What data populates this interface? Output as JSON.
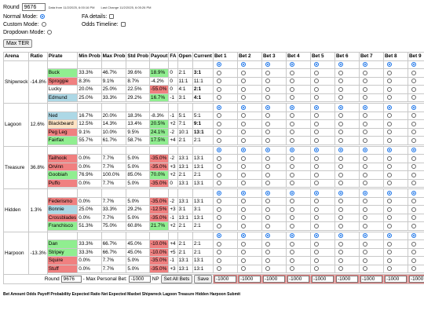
{
  "header": {
    "round_label": "Round",
    "round_value": "9676",
    "data_from": "Data from 11/2/2025, 6:00:16 PM",
    "last_change": "Last Change 11/2/2025, 6:05:26 PM",
    "normal_mode": "Normal Mode:",
    "custom_mode": "Custom Mode:",
    "dropdown_mode": "Dropdown Mode:",
    "fa_details": "FA details:",
    "odds_timeline": "Odds Timeline:",
    "max_ter": "Max TER"
  },
  "columns": [
    "Arena",
    "Ratio",
    "Pirate",
    "Min Prob",
    "Max Prob",
    "Std Prob",
    "Payout",
    "FA",
    "Open",
    "Current",
    "Bet 1",
    "Bet 2",
    "Bet 3",
    "Bet 4",
    "Bet 5",
    "Bet 6",
    "Bet 7",
    "Bet 8",
    "Bet 9"
  ],
  "arenas": [
    {
      "name": "Shipwreck",
      "ratio": "-14.8%",
      "pirates": [
        {
          "name": "Buck",
          "color": "g",
          "min": "33.3%",
          "max": "46.7%",
          "std": "39.6%",
          "payout": "18.9%",
          "pay_color": "g",
          "fa": "0",
          "open": "2:1",
          "current": "3:1",
          "cur_bold": true
        },
        {
          "name": "Sproggie",
          "color": "r",
          "min": "8.3%",
          "max": "9.1%",
          "std": "8.7%",
          "payout": "-4.2%",
          "pay_color": "",
          "fa": "0",
          "open": "11:1",
          "current": "11:1",
          "cur_bold": false
        },
        {
          "name": "Lucky",
          "color": "",
          "min": "20.0%",
          "max": "25.0%",
          "std": "22.5%",
          "payout": "-55.0%",
          "pay_color": "r",
          "fa": "0",
          "open": "4:1",
          "current": "2:1",
          "cur_bold": true
        },
        {
          "name": "Edmund",
          "color": "b",
          "min": "25.0%",
          "max": "33.3%",
          "std": "29.2%",
          "payout": "16.7%",
          "pay_color": "g",
          "fa": "-1",
          "open": "3:1",
          "current": "4:1",
          "cur_bold": true
        }
      ]
    },
    {
      "name": "Lagoon",
      "ratio": "12.6%",
      "pirates": [
        {
          "name": "Ned",
          "color": "b",
          "min": "16.7%",
          "max": "20.0%",
          "std": "18.3%",
          "payout": "-8.3%",
          "pay_color": "",
          "fa": "-1",
          "open": "5:1",
          "current": "5:1",
          "cur_bold": false
        },
        {
          "name": "Blackbeard",
          "color": "o",
          "min": "12.5%",
          "max": "14.3%",
          "std": "13.4%",
          "payout": "20.5%",
          "pay_color": "g",
          "fa": "+2",
          "open": "7:1",
          "current": "9:1",
          "cur_bold": true
        },
        {
          "name": "Peg Leg",
          "color": "r",
          "min": "9.1%",
          "max": "10.0%",
          "std": "9.5%",
          "payout": "24.1%",
          "pay_color": "g",
          "fa": "-2",
          "open": "10:1",
          "current": "13:1",
          "cur_bold": true
        },
        {
          "name": "Fairfax",
          "color": "g",
          "min": "55.7%",
          "max": "61.7%",
          "std": "58.7%",
          "payout": "17.5%",
          "pay_color": "g",
          "fa": "+4",
          "open": "2:1",
          "current": "2:1",
          "cur_bold": false
        }
      ]
    },
    {
      "name": "Treasure",
      "ratio": "36.8%",
      "pirates": [
        {
          "name": "Tailhook",
          "color": "r",
          "min": "0.0%",
          "max": "7.7%",
          "std": "5.0%",
          "payout": "-35.0%",
          "pay_color": "r",
          "fa": "-2",
          "open": "13:1",
          "current": "13:1",
          "cur_bold": false
        },
        {
          "name": "Orvinn",
          "color": "r",
          "min": "0.0%",
          "max": "7.7%",
          "std": "5.0%",
          "payout": "-35.0%",
          "pay_color": "r",
          "fa": "+3",
          "open": "13:1",
          "current": "13:1",
          "cur_bold": false
        },
        {
          "name": "Goobiah",
          "color": "g",
          "min": "76.9%",
          "max": "100.0%",
          "std": "85.0%",
          "payout": "70.0%",
          "pay_color": "g",
          "fa": "+2",
          "open": "2:1",
          "current": "2:1",
          "cur_bold": false
        },
        {
          "name": "Puffo",
          "color": "r",
          "min": "0.0%",
          "max": "7.7%",
          "std": "5.0%",
          "payout": "-35.0%",
          "pay_color": "r",
          "fa": "0",
          "open": "13:1",
          "current": "13:1",
          "cur_bold": false
        }
      ]
    },
    {
      "name": "Hidden",
      "ratio": "1.3%",
      "pirates": [
        {
          "name": "Federismo",
          "color": "r",
          "min": "0.0%",
          "max": "7.7%",
          "std": "5.0%",
          "payout": "-35.0%",
          "pay_color": "r",
          "fa": "-2",
          "open": "13:1",
          "current": "13:1",
          "cur_bold": false
        },
        {
          "name": "Bonnie",
          "color": "b",
          "min": "25.0%",
          "max": "33.3%",
          "std": "29.2%",
          "payout": "-12.5%",
          "pay_color": "r",
          "fa": "+3",
          "open": "3:1",
          "current": "3:1",
          "cur_bold": false
        },
        {
          "name": "Crossblades",
          "color": "r",
          "min": "0.0%",
          "max": "7.7%",
          "std": "5.0%",
          "payout": "-35.0%",
          "pay_color": "r",
          "fa": "-1",
          "open": "13:1",
          "current": "13:1",
          "cur_bold": false
        },
        {
          "name": "Franchisco",
          "color": "g",
          "min": "51.3%",
          "max": "75.0%",
          "std": "60.8%",
          "payout": "21.7%",
          "pay_color": "g",
          "fa": "+2",
          "open": "2:1",
          "current": "2:1",
          "cur_bold": false
        }
      ]
    },
    {
      "name": "Harpoon",
      "ratio": "-13.3%",
      "pirates": [
        {
          "name": "Dan",
          "color": "g",
          "min": "33.3%",
          "max": "66.7%",
          "std": "45.0%",
          "payout": "-10.0%",
          "pay_color": "r",
          "fa": "+4",
          "open": "2:1",
          "current": "2:1",
          "cur_bold": false
        },
        {
          "name": "Stripey",
          "color": "g",
          "min": "33.3%",
          "max": "66.7%",
          "std": "45.0%",
          "payout": "-10.0%",
          "pay_color": "r",
          "fa": "+5",
          "open": "2:1",
          "current": "2:1",
          "cur_bold": false
        },
        {
          "name": "Squire",
          "color": "r",
          "min": "0.0%",
          "max": "7.7%",
          "std": "5.0%",
          "payout": "-35.0%",
          "pay_color": "r",
          "fa": "-1",
          "open": "13:1",
          "current": "13:1",
          "cur_bold": false
        },
        {
          "name": "Stuff",
          "color": "r",
          "min": "0.0%",
          "max": "7.7%",
          "std": "5.0%",
          "payout": "-35.0%",
          "pay_color": "r",
          "fa": "+3",
          "open": "13:1",
          "current": "13:1",
          "cur_bold": false
        }
      ]
    }
  ],
  "footer": {
    "round_label": "Round",
    "round_value": "9676",
    "max_personal_bet": "- Max Personal Bet:",
    "max_bet_value": "-1000",
    "np": "NP",
    "set_all_bets": "Set All Bets",
    "save": "Save",
    "bet_values": [
      "-1000",
      "-1000",
      "-1000",
      "-1000",
      "-1000",
      "-1000",
      "-1000",
      "-1000",
      "-1000"
    ]
  },
  "bottom_header": "Bet  Amount Odds Payoff Probability Expected Ratio Net Expected Maxbet Shipwreck Lagoon Treasure Hidden Harpoon Submit"
}
